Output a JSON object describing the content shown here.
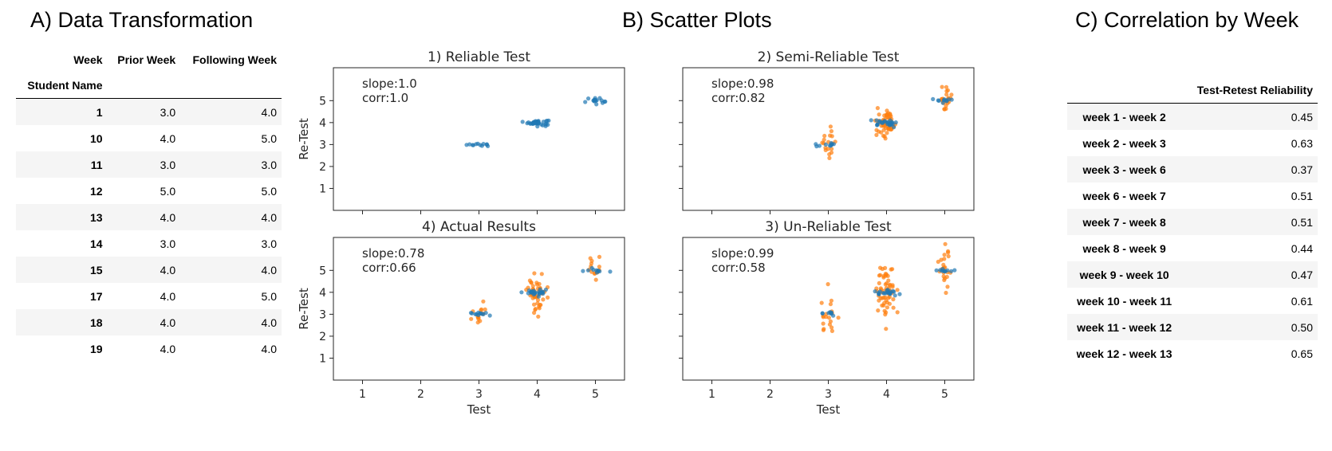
{
  "titles": {
    "a": "A) Data Transformation",
    "b": "B) Scatter Plots",
    "c": "C) Correlation by Week"
  },
  "table_a": {
    "columns_label": "Week",
    "columns": [
      "Prior Week",
      "Following Week"
    ],
    "index_label": "Student Name",
    "rows": [
      {
        "name": "1",
        "prior": "3.0",
        "following": "4.0"
      },
      {
        "name": "10",
        "prior": "4.0",
        "following": "5.0"
      },
      {
        "name": "11",
        "prior": "3.0",
        "following": "3.0"
      },
      {
        "name": "12",
        "prior": "5.0",
        "following": "5.0"
      },
      {
        "name": "13",
        "prior": "4.0",
        "following": "4.0"
      },
      {
        "name": "14",
        "prior": "3.0",
        "following": "3.0"
      },
      {
        "name": "15",
        "prior": "4.0",
        "following": "4.0"
      },
      {
        "name": "17",
        "prior": "4.0",
        "following": "5.0"
      },
      {
        "name": "18",
        "prior": "4.0",
        "following": "4.0"
      },
      {
        "name": "19",
        "prior": "4.0",
        "following": "4.0"
      }
    ]
  },
  "table_c": {
    "column": "Test-Retest Reliability",
    "rows": [
      {
        "label": "week 1 - week 2",
        "value": "0.45"
      },
      {
        "label": "week 2 - week 3",
        "value": "0.63"
      },
      {
        "label": "week 3 - week 6",
        "value": "0.37"
      },
      {
        "label": "week 6 - week 7",
        "value": "0.51"
      },
      {
        "label": "week 7 - week 8",
        "value": "0.51"
      },
      {
        "label": "week 8 - week 9",
        "value": "0.44"
      },
      {
        "label": "week 9 - week 10",
        "value": "0.47"
      },
      {
        "label": "week 10 - week 11",
        "value": "0.61"
      },
      {
        "label": "week 11 - week 12",
        "value": "0.50"
      },
      {
        "label": "week 12 - week 13",
        "value": "0.65"
      }
    ]
  },
  "colors": {
    "blue": "#1f77b4",
    "orange": "#ff7f0e",
    "axis": "#262626",
    "stripe": "#f5f5f5"
  },
  "chart_data": [
    {
      "type": "scatter",
      "title": "1) Reliable Test",
      "xlabel": "",
      "ylabel": "Re-Test",
      "xlim": [
        0.5,
        5.5
      ],
      "ylim": [
        0,
        6.5
      ],
      "xticks": [
        1,
        2,
        3,
        4,
        5
      ],
      "yticks": [
        1,
        2,
        3,
        4,
        5
      ],
      "annotation": [
        "slope:1.0",
        "corr:1.0"
      ],
      "series": [
        {
          "color": "blue",
          "clusters": [
            {
              "x": 3,
              "y": 3,
              "n": 12,
              "sx": 0.1,
              "sy": 0.05
            },
            {
              "x": 4,
              "y": 4,
              "n": 40,
              "sx": 0.1,
              "sy": 0.06
            },
            {
              "x": 5,
              "y": 5,
              "n": 18,
              "sx": 0.1,
              "sy": 0.08
            }
          ]
        }
      ]
    },
    {
      "type": "scatter",
      "title": "2) Semi-Reliable Test",
      "xlabel": "",
      "ylabel": "",
      "xlim": [
        0.5,
        5.5
      ],
      "ylim": [
        0,
        6.5
      ],
      "xticks": [
        1,
        2,
        3,
        4,
        5
      ],
      "yticks": [
        1,
        2,
        3,
        4,
        5
      ],
      "annotation": [
        "slope:0.98",
        "corr:0.82"
      ],
      "series": [
        {
          "color": "orange",
          "clusters": [
            {
              "x": 3,
              "y": 3,
              "n": 18,
              "sx": 0.07,
              "sy": 0.35
            },
            {
              "x": 4,
              "y": 4,
              "n": 55,
              "sx": 0.08,
              "sy": 0.3
            },
            {
              "x": 5,
              "y": 5,
              "n": 22,
              "sx": 0.06,
              "sy": 0.3
            }
          ]
        },
        {
          "color": "blue",
          "clusters": [
            {
              "x": 3,
              "y": 3,
              "n": 10,
              "sx": 0.09,
              "sy": 0.06
            },
            {
              "x": 4,
              "y": 4,
              "n": 25,
              "sx": 0.1,
              "sy": 0.06
            },
            {
              "x": 5,
              "y": 5,
              "n": 10,
              "sx": 0.1,
              "sy": 0.06
            }
          ]
        }
      ]
    },
    {
      "type": "scatter",
      "title": "4) Actual Results",
      "xlabel": "Test",
      "ylabel": "Re-Test",
      "xlim": [
        0.5,
        5.5
      ],
      "ylim": [
        0,
        6.5
      ],
      "xticks": [
        1,
        2,
        3,
        4,
        5
      ],
      "yticks": [
        1,
        2,
        3,
        4,
        5
      ],
      "annotation": [
        "slope:0.78",
        "corr:0.66"
      ],
      "series": [
        {
          "color": "orange",
          "clusters": [
            {
              "x": 3,
              "y": 3,
              "n": 14,
              "sx": 0.08,
              "sy": 0.3
            },
            {
              "x": 4,
              "y": 4,
              "n": 45,
              "sx": 0.08,
              "sy": 0.45
            },
            {
              "x": 5,
              "y": 5,
              "n": 14,
              "sx": 0.06,
              "sy": 0.3
            }
          ]
        },
        {
          "color": "blue",
          "clusters": [
            {
              "x": 3,
              "y": 3,
              "n": 12,
              "sx": 0.1,
              "sy": 0.05
            },
            {
              "x": 4,
              "y": 4,
              "n": 25,
              "sx": 0.1,
              "sy": 0.06
            },
            {
              "x": 5,
              "y": 5,
              "n": 10,
              "sx": 0.1,
              "sy": 0.06
            }
          ]
        }
      ]
    },
    {
      "type": "scatter",
      "title": "3) Un-Reliable Test",
      "xlabel": "Test",
      "ylabel": "",
      "xlim": [
        0.5,
        5.5
      ],
      "ylim": [
        0,
        6.5
      ],
      "xticks": [
        1,
        2,
        3,
        4,
        5
      ],
      "yticks": [
        1,
        2,
        3,
        4,
        5
      ],
      "annotation": [
        "slope:0.99",
        "corr:0.58"
      ],
      "series": [
        {
          "color": "orange",
          "clusters": [
            {
              "x": 3,
              "y": 3,
              "n": 20,
              "sx": 0.07,
              "sy": 0.65
            },
            {
              "x": 4,
              "y": 4,
              "n": 60,
              "sx": 0.08,
              "sy": 0.65
            },
            {
              "x": 5,
              "y": 5,
              "n": 22,
              "sx": 0.06,
              "sy": 0.7
            }
          ]
        },
        {
          "color": "blue",
          "clusters": [
            {
              "x": 3,
              "y": 3,
              "n": 8,
              "sx": 0.08,
              "sy": 0.06
            },
            {
              "x": 4,
              "y": 4,
              "n": 20,
              "sx": 0.1,
              "sy": 0.06
            },
            {
              "x": 5,
              "y": 5,
              "n": 10,
              "sx": 0.1,
              "sy": 0.06
            }
          ]
        }
      ]
    }
  ]
}
